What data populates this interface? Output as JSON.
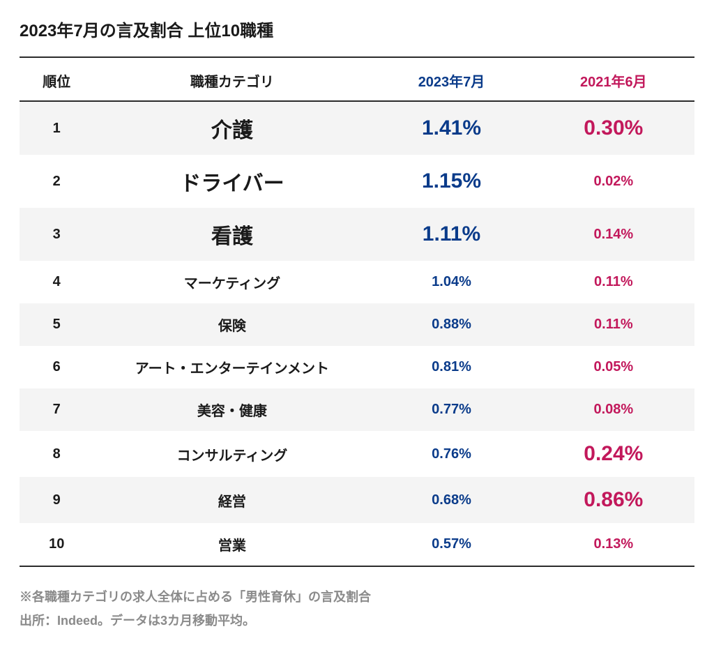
{
  "title": "2023年7月の言及割合 上位10職種",
  "colors": {
    "text": "#1a1a1a",
    "current": "#0a3b8a",
    "previous": "#c2185b",
    "row_odd_bg": "#f4f4f4",
    "row_even_bg": "#ffffff",
    "border": "#2b2b2b",
    "footnote": "#8a8a8a"
  },
  "columns": {
    "rank": {
      "label": "順位",
      "width_pct": 11,
      "align": "center"
    },
    "category": {
      "label": "職種カテゴリ",
      "width_pct": 41,
      "align": "center"
    },
    "current": {
      "label": "2023年7月",
      "width_pct": 24,
      "align": "center",
      "color": "#0a3b8a"
    },
    "previous": {
      "label": "2021年6月",
      "width_pct": 24,
      "align": "center",
      "color": "#c2185b"
    }
  },
  "font_sizes_pt": {
    "title": 24,
    "header": 20,
    "cell_base": 20,
    "cell_emph_1": 30,
    "cell_emph_2": 26,
    "footnote": 18
  },
  "rows": [
    {
      "rank": "1",
      "category": "介護",
      "current": "1.41%",
      "previous": "0.30%",
      "cat_emph": 1,
      "cur_emph": 1,
      "prev_emph": 1
    },
    {
      "rank": "2",
      "category": "ドライバー",
      "current": "1.15%",
      "previous": "0.02%",
      "cat_emph": 1,
      "cur_emph": 1,
      "prev_emph": 0
    },
    {
      "rank": "3",
      "category": "看護",
      "current": "1.11%",
      "previous": "0.14%",
      "cat_emph": 1,
      "cur_emph": 1,
      "prev_emph": 0
    },
    {
      "rank": "4",
      "category": "マーケティング",
      "current": "1.04%",
      "previous": "0.11%",
      "cat_emph": 0,
      "cur_emph": 0,
      "prev_emph": 0
    },
    {
      "rank": "5",
      "category": "保険",
      "current": "0.88%",
      "previous": "0.11%",
      "cat_emph": 0,
      "cur_emph": 0,
      "prev_emph": 0
    },
    {
      "rank": "6",
      "category": "アート・エンターテインメント",
      "current": "0.81%",
      "previous": "0.05%",
      "cat_emph": 0,
      "cur_emph": 0,
      "prev_emph": 0
    },
    {
      "rank": "7",
      "category": "美容・健康",
      "current": "0.77%",
      "previous": "0.08%",
      "cat_emph": 0,
      "cur_emph": 0,
      "prev_emph": 0
    },
    {
      "rank": "8",
      "category": "コンサルティング",
      "current": "0.76%",
      "previous": "0.24%",
      "cat_emph": 0,
      "cur_emph": 0,
      "prev_emph": 1
    },
    {
      "rank": "9",
      "category": "経営",
      "current": "0.68%",
      "previous": "0.86%",
      "cat_emph": 0,
      "cur_emph": 0,
      "prev_emph": 1
    },
    {
      "rank": "10",
      "category": "営業",
      "current": "0.57%",
      "previous": "0.13%",
      "cat_emph": 0,
      "cur_emph": 0,
      "prev_emph": 0
    }
  ],
  "footnote": {
    "line1": "※各職種カテゴリの求人全体に占める「男性育休」の言及割合",
    "line2": "出所：Indeed。データは3カ月移動平均。"
  }
}
